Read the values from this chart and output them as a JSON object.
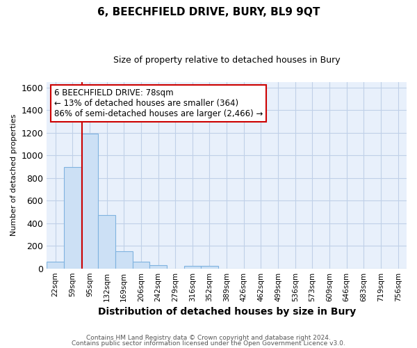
{
  "title_line1": "6, BEECHFIELD DRIVE, BURY, BL9 9QT",
  "title_line2": "Size of property relative to detached houses in Bury",
  "xlabel": "Distribution of detached houses by size in Bury",
  "ylabel": "Number of detached properties",
  "bar_labels": [
    "22sqm",
    "59sqm",
    "95sqm",
    "132sqm",
    "169sqm",
    "206sqm",
    "242sqm",
    "279sqm",
    "316sqm",
    "352sqm",
    "389sqm",
    "426sqm",
    "462sqm",
    "499sqm",
    "536sqm",
    "573sqm",
    "609sqm",
    "646sqm",
    "683sqm",
    "719sqm",
    "756sqm"
  ],
  "bar_values": [
    57,
    900,
    1190,
    470,
    150,
    60,
    30,
    0,
    20,
    20,
    0,
    0,
    0,
    0,
    0,
    0,
    0,
    0,
    0,
    0,
    0
  ],
  "bar_color": "#cce0f5",
  "bar_edge_color": "#7fb3e0",
  "ylim": [
    0,
    1650
  ],
  "yticks": [
    0,
    200,
    400,
    600,
    800,
    1000,
    1200,
    1400,
    1600
  ],
  "red_line_x": 1.55,
  "red_line_color": "#cc0000",
  "annotation_text": "6 BEECHFIELD DRIVE: 78sqm\n← 13% of detached houses are smaller (364)\n86% of semi-detached houses are larger (2,466) →",
  "annotation_box_color": "#ffffff",
  "annotation_box_edge_color": "#cc0000",
  "footnote_line1": "Contains HM Land Registry data © Crown copyright and database right 2024.",
  "footnote_line2": "Contains public sector information licensed under the Open Government Licence v3.0.",
  "background_color": "#ffffff",
  "plot_bg_color": "#e8f0fb",
  "grid_color": "#c0d0e8",
  "title1_fontsize": 11,
  "title2_fontsize": 9,
  "xlabel_fontsize": 10,
  "ylabel_fontsize": 8,
  "annotation_fontsize": 8.5
}
